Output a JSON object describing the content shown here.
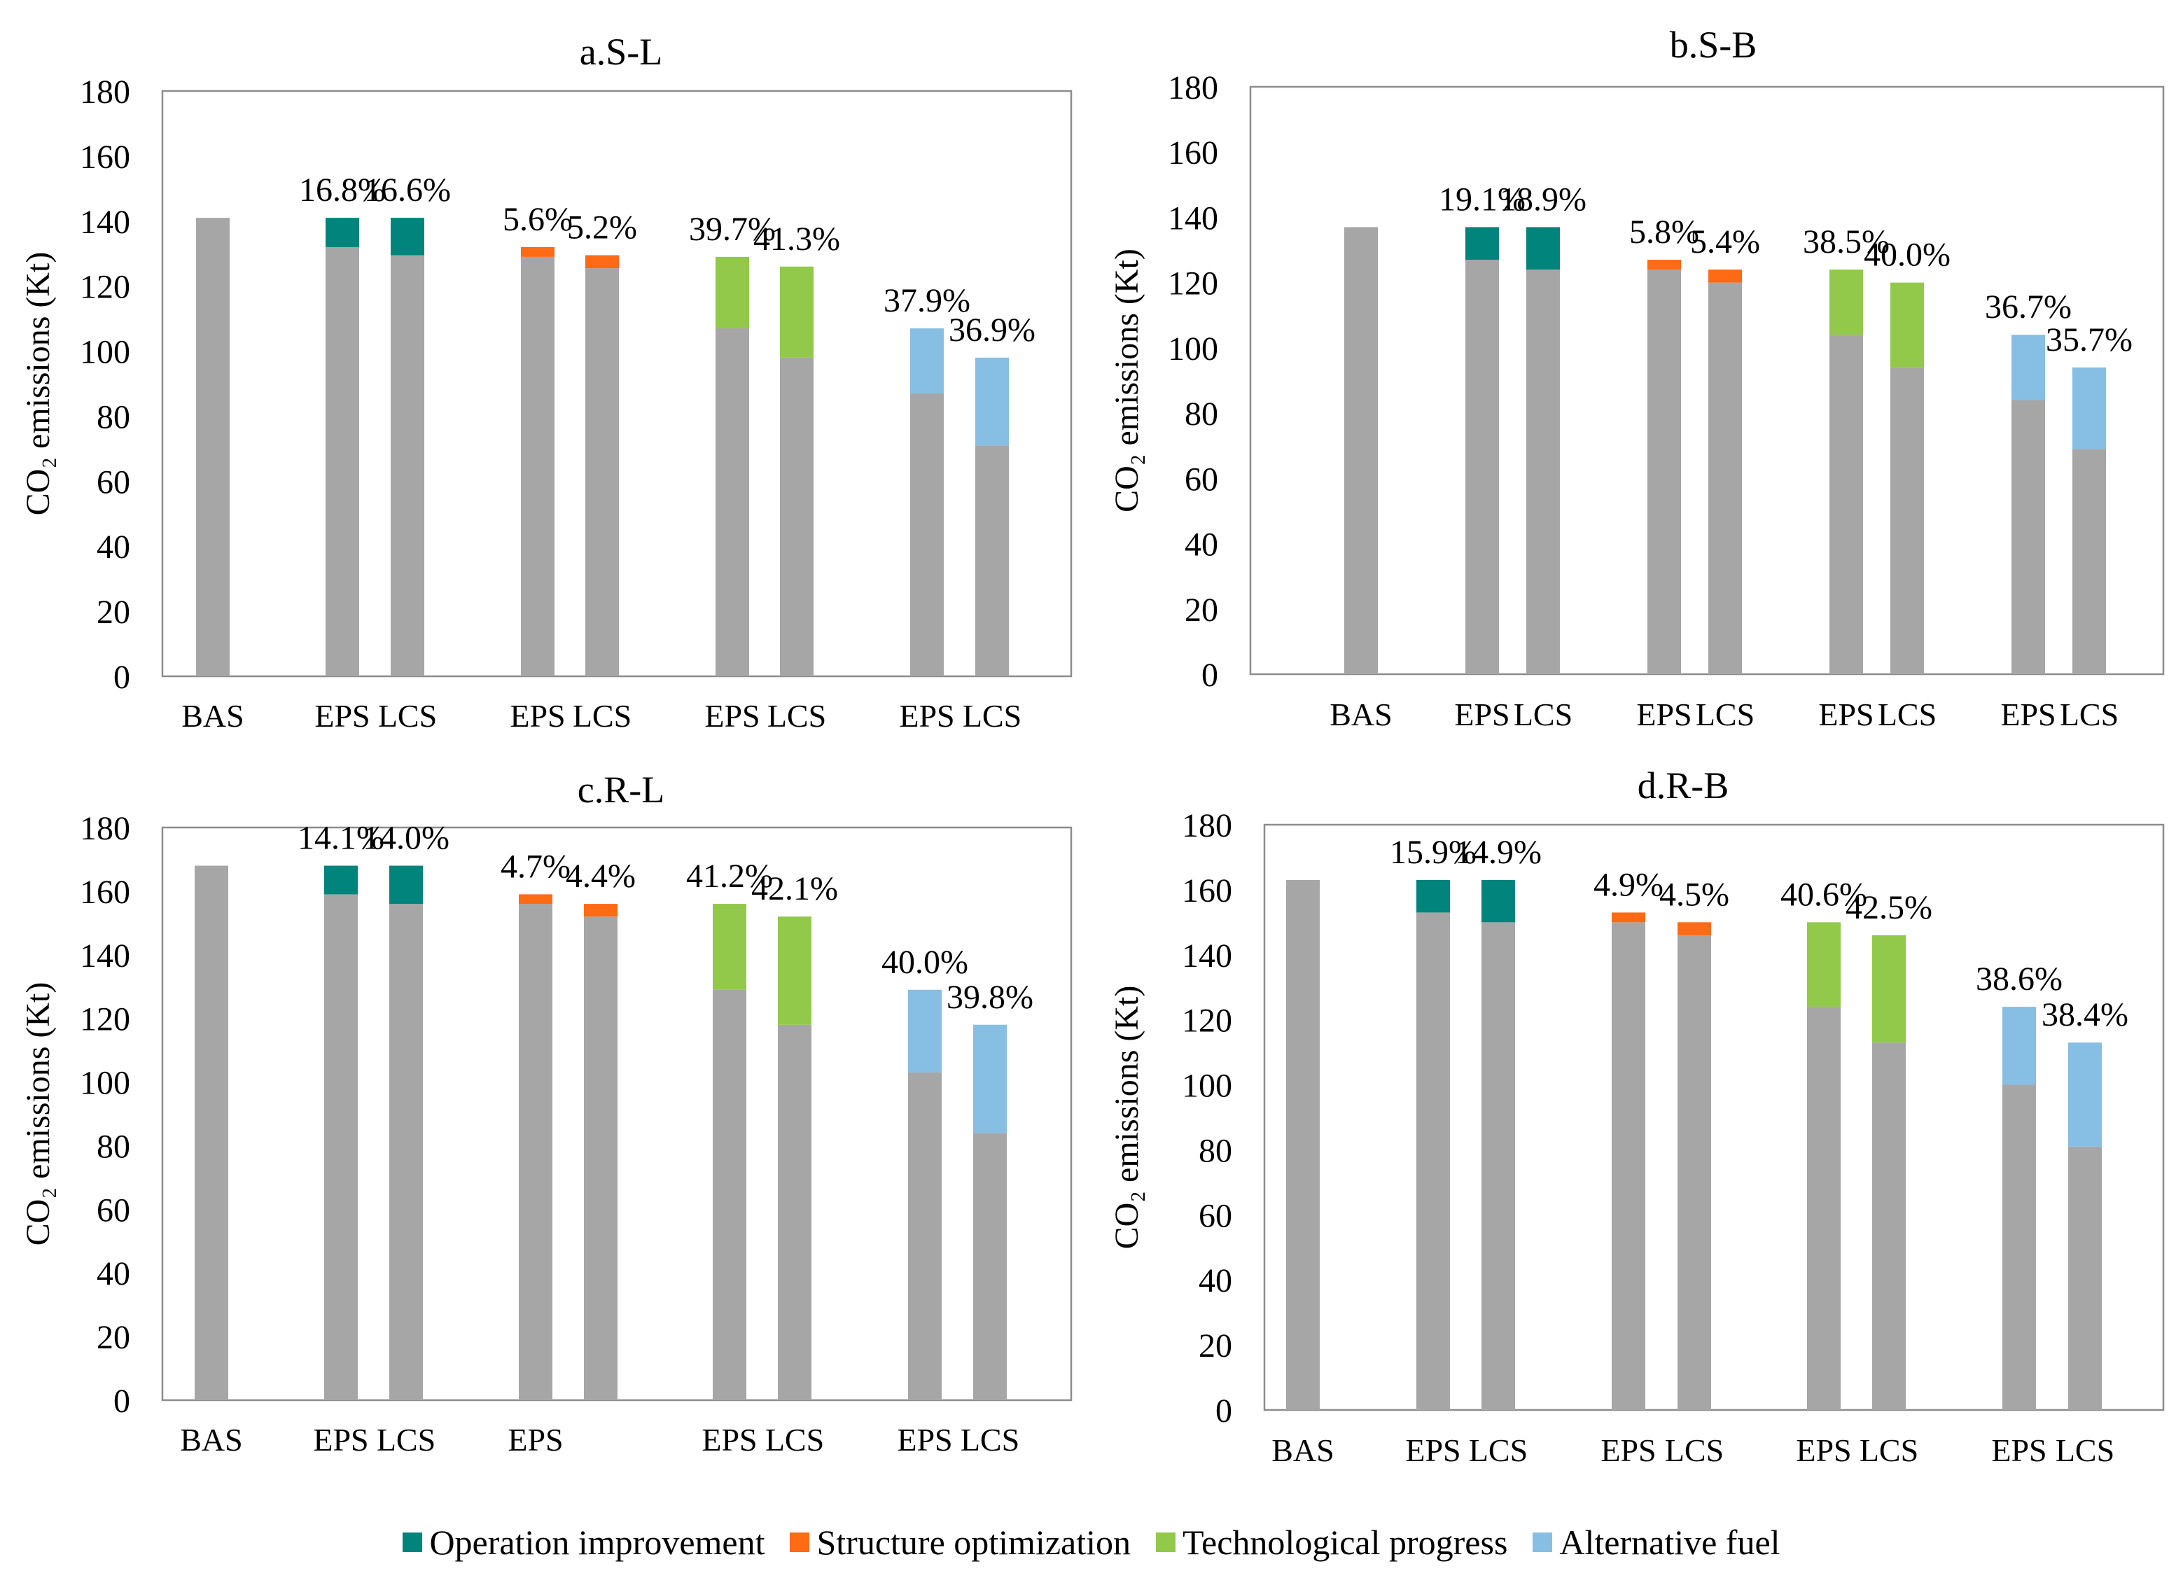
{
  "legend": [
    {
      "name": "Operation improvement",
      "color": "#00847C"
    },
    {
      "name": "Structure optimization",
      "color": "#FF6A14"
    },
    {
      "name": "Technological progress",
      "color": "#92C94A"
    },
    {
      "name": "Alternative fuel",
      "color": "#87BEE3"
    }
  ],
  "base_color": "#A6A6A6",
  "chart_data": [
    {
      "type": "bar",
      "stacked": true,
      "title": "a.S-L",
      "ylabel": "CO₂ emissions (Kt)",
      "ylim": [
        0,
        180
      ],
      "yticks": [
        0,
        20,
        40,
        60,
        80,
        100,
        120,
        140,
        160,
        180
      ],
      "bars": [
        {
          "label": "BAS",
          "group": 0,
          "base": 141,
          "extra": 0,
          "measure": "base",
          "pct": ""
        },
        {
          "label": "EPS",
          "group": 1,
          "base": 132,
          "extra": 9,
          "measure": "Operation improvement",
          "pct": "16.8%"
        },
        {
          "label": "LCS",
          "group": 1,
          "base": 129.5,
          "extra": 11.5,
          "measure": "Operation improvement",
          "pct": "16.6%"
        },
        {
          "label": "EPS",
          "group": 2,
          "base": 129,
          "extra": 3,
          "measure": "Structure optimization",
          "pct": "5.6%"
        },
        {
          "label": "LCS",
          "group": 2,
          "base": 125.5,
          "extra": 4,
          "measure": "Structure optimization",
          "pct": "5.2%"
        },
        {
          "label": "EPS",
          "group": 3,
          "base": 107,
          "extra": 22,
          "measure": "Technological progress",
          "pct": "39.7%"
        },
        {
          "label": "LCS",
          "group": 3,
          "base": 98,
          "extra": 28,
          "measure": "Technological progress",
          "pct": "41.3%"
        },
        {
          "label": "EPS",
          "group": 4,
          "base": 87,
          "extra": 20,
          "measure": "Alternative fuel",
          "pct": "37.9%"
        },
        {
          "label": "LCS",
          "group": 4,
          "base": 71,
          "extra": 27,
          "measure": "Alternative fuel",
          "pct": "36.9%"
        }
      ]
    },
    {
      "type": "bar",
      "stacked": true,
      "title": "b.S-B",
      "ylabel": "CO₂ emissions (Kt)",
      "ylim": [
        0,
        180
      ],
      "yticks": [
        0,
        20,
        40,
        60,
        80,
        100,
        120,
        140,
        160,
        180
      ],
      "bars": [
        {
          "label": "BAS",
          "group": 0,
          "base": 137,
          "extra": 0,
          "measure": "base",
          "pct": ""
        },
        {
          "label": "EPS",
          "group": 1,
          "base": 127,
          "extra": 10,
          "measure": "Operation improvement",
          "pct": "19.1%"
        },
        {
          "label": "LCS",
          "group": 1,
          "base": 124,
          "extra": 13,
          "measure": "Operation improvement",
          "pct": "18.9%"
        },
        {
          "label": "EPS",
          "group": 2,
          "base": 124,
          "extra": 3,
          "measure": "Structure optimization",
          "pct": "5.8%"
        },
        {
          "label": "LCS",
          "group": 2,
          "base": 120,
          "extra": 4,
          "measure": "Structure optimization",
          "pct": "5.4%"
        },
        {
          "label": "EPS",
          "group": 3,
          "base": 104,
          "extra": 20,
          "measure": "Technological progress",
          "pct": "38.5%"
        },
        {
          "label": "LCS",
          "group": 3,
          "base": 94,
          "extra": 26,
          "measure": "Technological progress",
          "pct": "40.0%"
        },
        {
          "label": "EPS",
          "group": 4,
          "base": 84,
          "extra": 20,
          "measure": "Alternative fuel",
          "pct": "36.7%"
        },
        {
          "label": "LCS",
          "group": 4,
          "base": 69,
          "extra": 25,
          "measure": "Alternative fuel",
          "pct": "35.7%"
        }
      ]
    },
    {
      "type": "bar",
      "stacked": true,
      "title": "c.R-L",
      "ylabel": "CO₂ emissions (Kt)",
      "ylim": [
        0,
        180
      ],
      "yticks": [
        0,
        20,
        40,
        60,
        80,
        100,
        120,
        140,
        160,
        180
      ],
      "bars": [
        {
          "label": "BAS",
          "group": 0,
          "base": 168,
          "extra": 0,
          "measure": "base",
          "pct": ""
        },
        {
          "label": "EPS",
          "group": 1,
          "base": 159,
          "extra": 9,
          "measure": "Operation improvement",
          "pct": "14.1%"
        },
        {
          "label": "LCS",
          "group": 1,
          "base": 156,
          "extra": 12,
          "measure": "Operation improvement",
          "pct": "14.0%"
        },
        {
          "label": "EPS",
          "group": 2,
          "base": 156,
          "extra": 3,
          "measure": "Structure optimization",
          "pct": "4.7%"
        },
        {
          "label": "",
          "group": 2,
          "base": 152,
          "extra": 4,
          "measure": "Structure optimization",
          "pct": "4.4%"
        },
        {
          "label": "EPS",
          "group": 3,
          "base": 129,
          "extra": 27,
          "measure": "Technological progress",
          "pct": "41.2%"
        },
        {
          "label": "LCS",
          "group": 3,
          "base": 118,
          "extra": 34,
          "measure": "Technological progress",
          "pct": "42.1%"
        },
        {
          "label": "EPS",
          "group": 4,
          "base": 103,
          "extra": 26,
          "measure": "Alternative fuel",
          "pct": "40.0%"
        },
        {
          "label": "LCS",
          "group": 4,
          "base": 84,
          "extra": 34,
          "measure": "Alternative fuel",
          "pct": "39.8%"
        }
      ]
    },
    {
      "type": "bar",
      "stacked": true,
      "title": "d.R-B",
      "ylabel": "CO₂ emissions (Kt)",
      "ylim": [
        0,
        180
      ],
      "yticks": [
        0,
        20,
        40,
        60,
        80,
        100,
        120,
        140,
        160,
        180
      ],
      "bars": [
        {
          "label": "BAS",
          "group": 0,
          "base": 163,
          "extra": 0,
          "measure": "base",
          "pct": ""
        },
        {
          "label": "EPS",
          "group": 1,
          "base": 153,
          "extra": 10,
          "measure": "Operation improvement",
          "pct": "15.9%"
        },
        {
          "label": "LCS",
          "group": 1,
          "base": 150,
          "extra": 13,
          "measure": "Operation improvement",
          "pct": "14.9%"
        },
        {
          "label": "EPS",
          "group": 2,
          "base": 150,
          "extra": 3,
          "measure": "Structure optimization",
          "pct": "4.9%"
        },
        {
          "label": "LCS",
          "group": 2,
          "base": 146,
          "extra": 4,
          "measure": "Structure optimization",
          "pct": "4.5%"
        },
        {
          "label": "EPS",
          "group": 3,
          "base": 124,
          "extra": 26,
          "measure": "Technological progress",
          "pct": "40.6%"
        },
        {
          "label": "LCS",
          "group": 3,
          "base": 113,
          "extra": 33,
          "measure": "Technological progress",
          "pct": "42.5%"
        },
        {
          "label": "EPS",
          "group": 4,
          "base": 100,
          "extra": 24,
          "measure": "Alternative fuel",
          "pct": "38.6%"
        },
        {
          "label": "LCS",
          "group": 4,
          "base": 81,
          "extra": 32,
          "measure": "Alternative fuel",
          "pct": "38.4%"
        }
      ]
    }
  ]
}
